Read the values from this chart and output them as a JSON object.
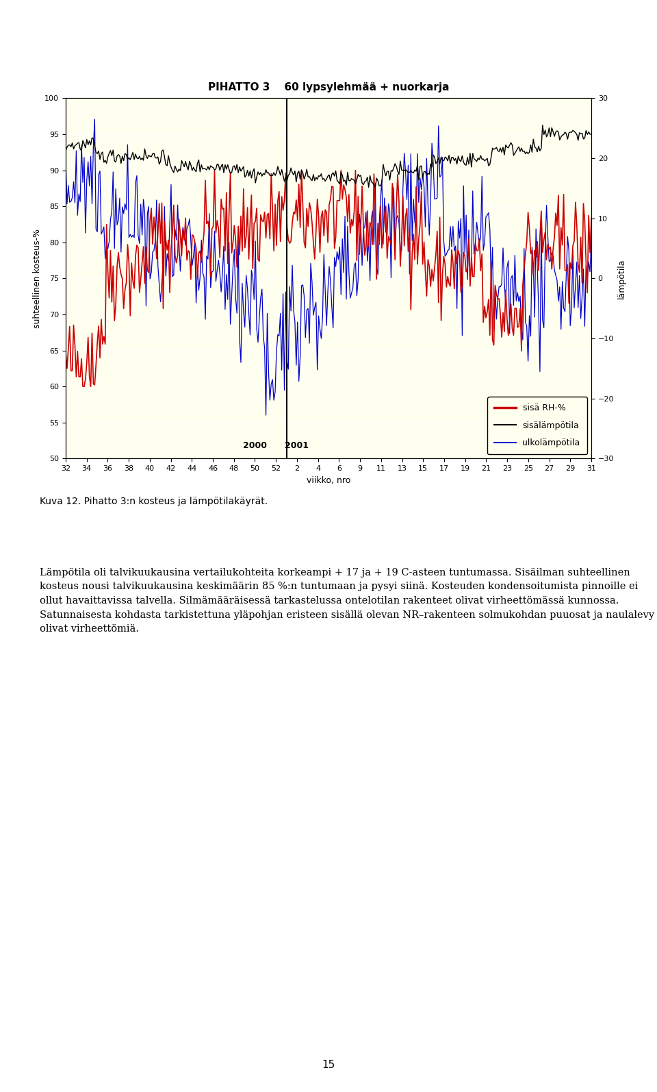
{
  "title": "PIHATTO 3    60 lypsylehmää + nuorkarja",
  "ylabel_left": "suhteellinen kosteus-%",
  "ylabel_right": "lämpötila",
  "xlabel": "viikko, nro",
  "ylim_left": [
    50,
    100
  ],
  "ylim_right": [
    -30,
    30
  ],
  "yticks_left": [
    50,
    55,
    60,
    65,
    70,
    75,
    80,
    85,
    90,
    95,
    100
  ],
  "yticks_right": [
    -30,
    -20,
    -10,
    0,
    10,
    20,
    30
  ],
  "year2000_label": "2000",
  "year2001_label": "2001",
  "background_color": "#fffff0",
  "legend_items": [
    {
      "label": "sisä RH-%",
      "color": "#cc0000",
      "lw": 2
    },
    {
      "label": "sisälämpötila",
      "color": "black",
      "lw": 1.5
    },
    {
      "label": "ulkolämpötila",
      "color": "#0000cc",
      "lw": 1.5
    }
  ],
  "x_ticks": [
    32,
    34,
    36,
    38,
    40,
    42,
    44,
    46,
    48,
    50,
    52,
    2,
    4,
    6,
    9,
    11,
    13,
    15,
    17,
    19,
    21,
    23,
    25,
    27,
    29,
    31
  ],
  "caption": "Kuva 12. Pihatto 3:n kosteus ja lämpötilakäyrät.",
  "paragraph": "Lämpötila oli talvikuukausina vertailukohteita korkeampi + 17 ja + 19 C-asteen tuntumassa. Sisäilman suhteellinen kosteus nousi talvikuukausina keskimäärin 85 %:n tuntumaan ja pysyi siinä. Kosteuden kondensoitumista pinnoille ei ollut havaittavissa talvella. Silmämääräisessä tarkastelussa ontelotilan rakenteet olivat virheettömässä kunnossa. Satunnaisesta kohdasta tarkistettuna yläpohjan eristeen sisällä olevan NR–rakenteen solmukohdan puuosat ja naulalevy olivat virheettömiä.",
  "page_number": "15",
  "seed": 42
}
